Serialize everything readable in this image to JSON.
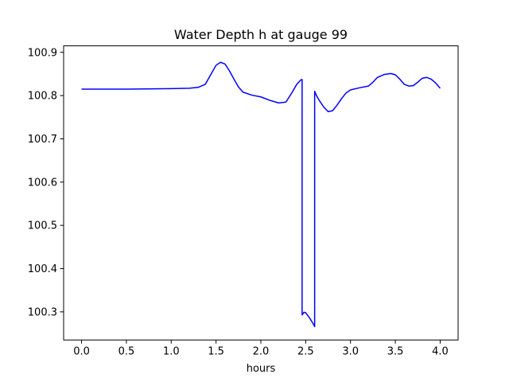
{
  "chart_data": {
    "type": "line",
    "title": "Water Depth h at gauge 99",
    "xlabel": "hours",
    "ylabel": "",
    "xlim": [
      -0.2,
      4.2
    ],
    "ylim": [
      100.235,
      100.915
    ],
    "xticks": [
      0.0,
      0.5,
      1.0,
      1.5,
      2.0,
      2.5,
      3.0,
      3.5,
      4.0
    ],
    "xtick_labels": [
      "0.0",
      "0.5",
      "1.0",
      "1.5",
      "2.0",
      "2.5",
      "3.0",
      "3.5",
      "4.0"
    ],
    "yticks": [
      100.3,
      100.4,
      100.5,
      100.6,
      100.7,
      100.8,
      100.9
    ],
    "ytick_labels": [
      "100.3",
      "100.4",
      "100.5",
      "100.6",
      "100.7",
      "100.8",
      "100.9"
    ],
    "grid": false,
    "series": [
      {
        "color": "#0000ff",
        "x": [
          0.0,
          0.5,
          1.0,
          1.2,
          1.3,
          1.38,
          1.44,
          1.5,
          1.55,
          1.6,
          1.65,
          1.7,
          1.75,
          1.8,
          1.9,
          2.0,
          2.1,
          2.2,
          2.28,
          2.35,
          2.4,
          2.45,
          2.46,
          2.46,
          2.48,
          2.5,
          2.54,
          2.58,
          2.6,
          2.6,
          2.62,
          2.66,
          2.7,
          2.75,
          2.8,
          2.85,
          2.9,
          2.95,
          3.0,
          3.1,
          3.2,
          3.25,
          3.3,
          3.38,
          3.45,
          3.5,
          3.55,
          3.6,
          3.65,
          3.7,
          3.75,
          3.8,
          3.85,
          3.9,
          3.95,
          4.0
        ],
        "y": [
          100.815,
          100.815,
          100.816,
          100.817,
          100.819,
          100.826,
          100.848,
          100.87,
          100.877,
          100.873,
          100.857,
          100.838,
          100.82,
          100.808,
          100.801,
          100.797,
          100.789,
          100.783,
          100.785,
          100.808,
          100.826,
          100.837,
          100.837,
          100.293,
          100.299,
          100.298,
          100.287,
          100.274,
          100.266,
          100.81,
          100.8,
          100.786,
          100.774,
          100.763,
          100.765,
          100.778,
          100.793,
          100.806,
          100.813,
          100.818,
          100.822,
          100.831,
          100.842,
          100.849,
          100.851,
          100.848,
          100.838,
          100.826,
          100.822,
          100.823,
          100.831,
          100.84,
          100.842,
          100.838,
          100.829,
          100.817
        ]
      }
    ]
  }
}
